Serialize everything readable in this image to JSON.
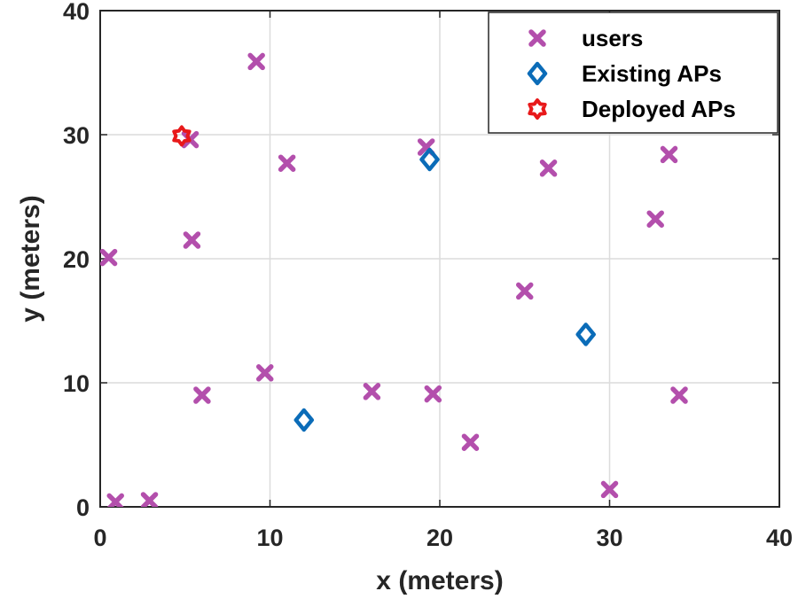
{
  "chart_data": {
    "type": "scatter",
    "xlabel": "x (meters)",
    "ylabel": "y (meters)",
    "xlim": [
      0,
      40
    ],
    "ylim": [
      0,
      40
    ],
    "xticks": [
      "0",
      "10",
      "20",
      "30",
      "40"
    ],
    "yticks": [
      "0",
      "10",
      "20",
      "30",
      "40"
    ],
    "grid": true,
    "legend_position": "top-right",
    "series": [
      {
        "name": "users",
        "marker": "x",
        "color": "#b34fac",
        "points": [
          [
            0.5,
            20.1
          ],
          [
            0.9,
            0.4
          ],
          [
            2.9,
            0.5
          ],
          [
            5.3,
            29.6
          ],
          [
            5.4,
            21.5
          ],
          [
            6.0,
            9.0
          ],
          [
            9.2,
            35.9
          ],
          [
            9.7,
            10.8
          ],
          [
            11.0,
            27.7
          ],
          [
            16.0,
            9.3
          ],
          [
            19.2,
            29.0
          ],
          [
            19.6,
            9.1
          ],
          [
            21.8,
            5.2
          ],
          [
            25.0,
            17.4
          ],
          [
            26.4,
            27.3
          ],
          [
            30.0,
            1.4
          ],
          [
            32.7,
            23.2
          ],
          [
            33.5,
            28.4
          ],
          [
            34.1,
            9.0
          ]
        ]
      },
      {
        "name": "Existing APs",
        "marker": "diamond",
        "color": "#0b6cb8",
        "points": [
          [
            12.0,
            7.0
          ],
          [
            19.4,
            28.0
          ],
          [
            28.6,
            13.9
          ]
        ]
      },
      {
        "name": "Deployed APs",
        "marker": "hexagram",
        "color": "#e8191a",
        "points": [
          [
            4.8,
            29.9
          ]
        ]
      }
    ]
  }
}
